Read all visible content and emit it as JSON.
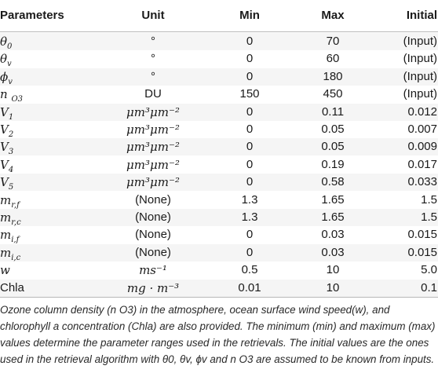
{
  "headers": {
    "parameters": "Parameters",
    "unit": "Unit",
    "min": "Min",
    "max": "Max",
    "initial": "Initial"
  },
  "rows": [
    {
      "param": "θ",
      "sub": "0",
      "sup": "",
      "unit": "°",
      "min": "0",
      "max": "70",
      "initial": "(Input)"
    },
    {
      "param": "θ",
      "sub": "v",
      "sup": "",
      "unit": "°",
      "min": "0",
      "max": "60",
      "initial": "(Input)"
    },
    {
      "param": "ϕ",
      "sub": "v",
      "sup": "",
      "unit": "°",
      "min": "0",
      "max": "180",
      "initial": "(Input)"
    },
    {
      "param": "n ",
      "sub": "O3",
      "sup": "",
      "unit": "DU",
      "min": "150",
      "max": "450",
      "initial": "(Input)"
    },
    {
      "param": "V",
      "sub": "1",
      "sup": "",
      "unit": "μm³μm⁻²",
      "min": "0",
      "max": "0.11",
      "initial": "0.012"
    },
    {
      "param": "V",
      "sub": "2",
      "sup": "",
      "unit": "μm³μm⁻²",
      "min": "0",
      "max": "0.05",
      "initial": "0.007"
    },
    {
      "param": "V",
      "sub": "3",
      "sup": "",
      "unit": "μm³μm⁻²",
      "min": "0",
      "max": "0.05",
      "initial": "0.009"
    },
    {
      "param": "V",
      "sub": "4",
      "sup": "",
      "unit": "μm³μm⁻²",
      "min": "0",
      "max": "0.19",
      "initial": "0.017"
    },
    {
      "param": "V",
      "sub": "5",
      "sup": "",
      "unit": "μm³μm⁻²",
      "min": "0",
      "max": "0.58",
      "initial": "0.033"
    },
    {
      "param": "m",
      "sub": "r,f",
      "sup": "",
      "unit": "(None)",
      "min": "1.3",
      "max": "1.65",
      "initial": "1.5"
    },
    {
      "param": "m",
      "sub": "r,c",
      "sup": "",
      "unit": "(None)",
      "min": "1.3",
      "max": "1.65",
      "initial": "1.5"
    },
    {
      "param": "m",
      "sub": "i,f",
      "sup": "",
      "unit": "(None)",
      "min": "0",
      "max": "0.03",
      "initial": "0.015"
    },
    {
      "param": "m",
      "sub": "i,c",
      "sup": "",
      "unit": "(None)",
      "min": "0",
      "max": "0.03",
      "initial": "0.015"
    },
    {
      "param": "w",
      "sub": "",
      "sup": "",
      "unit": "ms⁻¹",
      "min": "0.5",
      "max": "10",
      "initial": "5.0"
    },
    {
      "param": "Chla",
      "sub": "",
      "sup": "",
      "unit": "mg · m⁻³",
      "min": "0.01",
      "max": "10",
      "initial": "0.1"
    }
  ],
  "footnote": "Ozone column density (n O3) in the atmosphere, ocean surface wind speed(w), and chlorophyll a concentration (Chla) are also provided. The minimum (min) and maximum (max) values determine the parameter ranges used in the retrievals. The initial values are the ones used in the retrieval algorithm with θ0, θv, ϕv and n O3 are assumed to be known from inputs."
}
